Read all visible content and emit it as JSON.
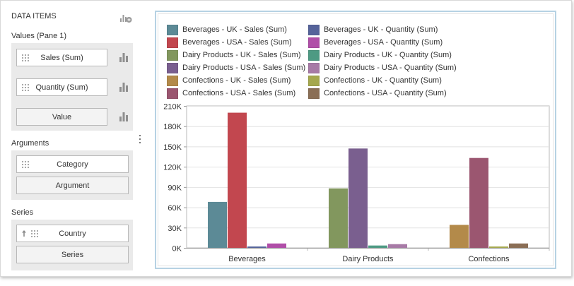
{
  "data_items": {
    "title": "DATA ITEMS",
    "values_label": "Values (Pane 1)",
    "values": [
      {
        "label": "Sales (Sum)"
      },
      {
        "label": "Quantity (Sum)"
      }
    ],
    "value_placeholder": "Value",
    "arguments_label": "Arguments",
    "arguments": [
      {
        "label": "Category"
      }
    ],
    "argument_placeholder": "Argument",
    "series_label": "Series",
    "series": [
      {
        "label": "Country"
      }
    ],
    "series_placeholder": "Series"
  },
  "chart_data": {
    "type": "bar",
    "categories": [
      "Beverages",
      "Dairy Products",
      "Confections"
    ],
    "ylim": [
      0,
      210000
    ],
    "yticks": [
      "0K",
      "30K",
      "60K",
      "90K",
      "120K",
      "150K",
      "180K",
      "210K"
    ],
    "yticks_values": [
      0,
      30000,
      60000,
      90000,
      120000,
      150000,
      180000,
      210000
    ],
    "series": [
      {
        "name": "Beverages - UK - Sales (Sum)",
        "color": "#5c8a96",
        "values": [
          68000,
          null,
          null
        ]
      },
      {
        "name": "Beverages - USA - Sales (Sum)",
        "color": "#c2474f",
        "values": [
          200000,
          null,
          null
        ]
      },
      {
        "name": "Beverages - UK - Quantity (Sum)",
        "color": "#55639a",
        "values": [
          2000,
          null,
          null
        ]
      },
      {
        "name": "Beverages - USA - Quantity (Sum)",
        "color": "#b04ea8",
        "values": [
          6500,
          null,
          null
        ]
      },
      {
        "name": "Dairy Products - UK - Sales (Sum)",
        "color": "#82975e",
        "values": [
          null,
          88000,
          null
        ]
      },
      {
        "name": "Dairy Products - USA - Sales (Sum)",
        "color": "#7a5f8f",
        "values": [
          null,
          147000,
          null
        ]
      },
      {
        "name": "Dairy Products - UK - Quantity (Sum)",
        "color": "#4e9a83",
        "values": [
          null,
          3500,
          null
        ]
      },
      {
        "name": "Dairy Products - USA - Quantity (Sum)",
        "color": "#a77aa6",
        "values": [
          null,
          5500,
          null
        ]
      },
      {
        "name": "Confections - UK - Sales (Sum)",
        "color": "#b38a4a",
        "values": [
          null,
          null,
          34000
        ]
      },
      {
        "name": "Confections - USA - Sales (Sum)",
        "color": "#9b5670",
        "values": [
          null,
          null,
          133000
        ]
      },
      {
        "name": "Confections - UK - Quantity (Sum)",
        "color": "#a5a84e",
        "values": [
          null,
          null,
          2000
        ]
      },
      {
        "name": "Confections - USA - Quantity (Sum)",
        "color": "#8a6e55",
        "values": [
          null,
          null,
          6500
        ]
      }
    ],
    "legend_order": [
      "Beverages - UK - Sales (Sum)",
      "Beverages - UK - Quantity (Sum)",
      "Beverages - USA - Sales (Sum)",
      "Beverages - USA - Quantity (Sum)",
      "Dairy Products - UK - Sales (Sum)",
      "Dairy Products - UK - Quantity (Sum)",
      "Dairy Products - USA - Sales (Sum)",
      "Dairy Products - USA - Quantity (Sum)",
      "Confections - UK - Sales (Sum)",
      "Confections - UK - Quantity (Sum)",
      "Confections - USA - Sales (Sum)",
      "Confections - USA - Quantity (Sum)"
    ],
    "legend_placement": "top",
    "grid": true,
    "xlabel": "",
    "ylabel": ""
  }
}
